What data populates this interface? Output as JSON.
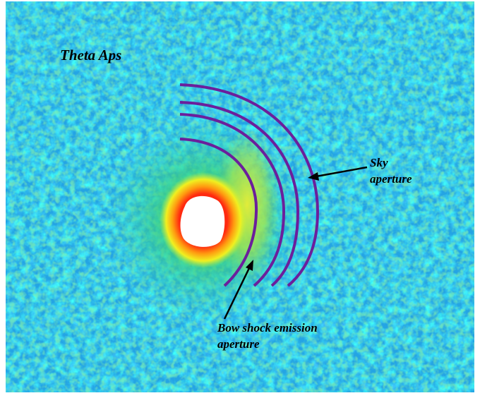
{
  "title": "Theta Aps",
  "labels": {
    "sky": [
      "Sky",
      "aperture"
    ],
    "bow_shock": [
      "Bow shock emission",
      "aperture"
    ]
  }
}
